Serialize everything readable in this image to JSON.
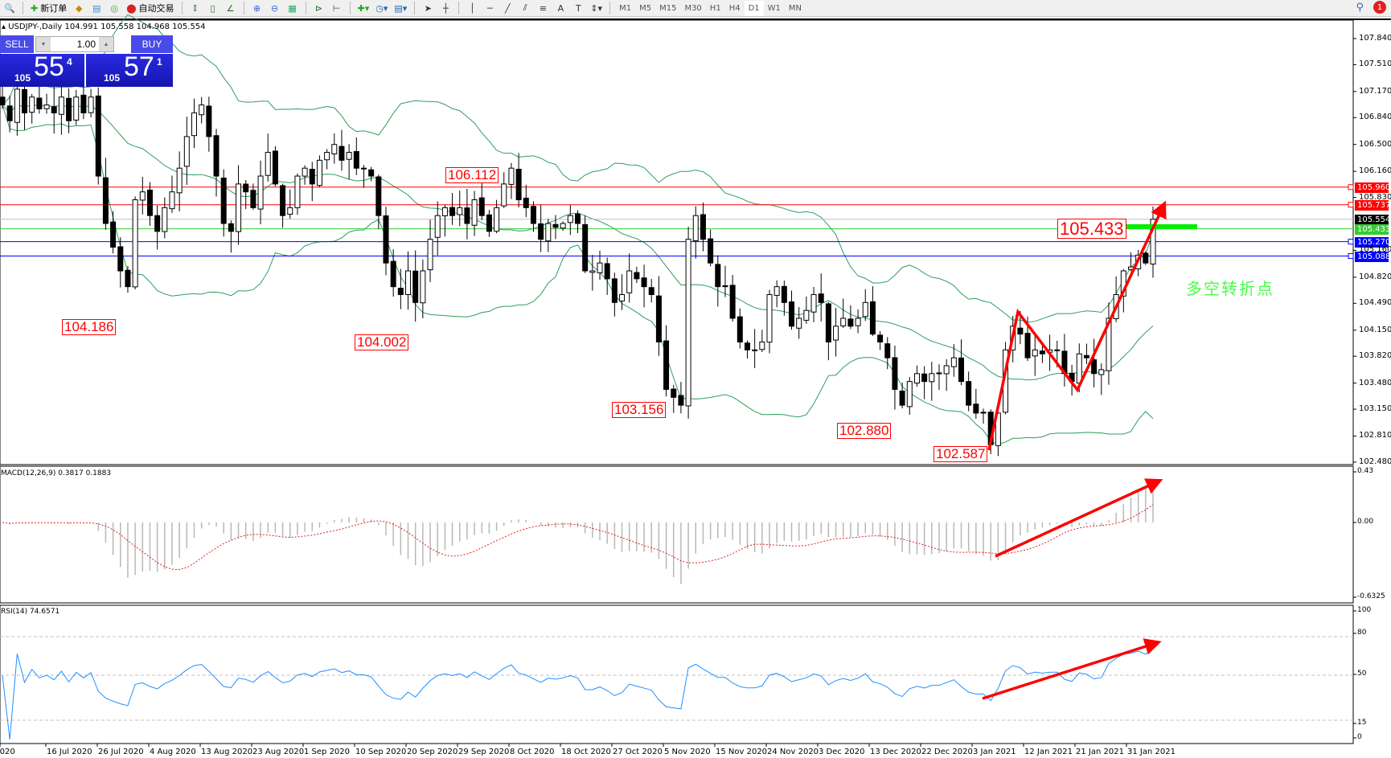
{
  "toolbar": {
    "new_order": "新订单",
    "auto_trading": "自动交易",
    "timeframes": [
      "M1",
      "M5",
      "M15",
      "M30",
      "H1",
      "H4",
      "D1",
      "W1",
      "MN"
    ],
    "active_timeframe": "D1",
    "notification_count": "1"
  },
  "chart": {
    "title": "USDJPY-,Daily",
    "open": "104.991",
    "high": "105.558",
    "low": "104.968",
    "close": "105.554",
    "trade": {
      "sell_label": "SELL",
      "buy_label": "BUY",
      "lot": "1.00",
      "sell_big": "105",
      "sell_mid": "55",
      "sell_sup": "4",
      "buy_big": "105",
      "buy_mid": "57",
      "buy_sup": "1"
    }
  },
  "chart_data": {
    "type": "candlestick",
    "symbol": "USDJPY",
    "timeframe": "Daily",
    "price_ticks": [
      "107.840",
      "107.510",
      "107.170",
      "106.840",
      "106.500",
      "106.160",
      "105.830",
      "105.160",
      "104.820",
      "104.490",
      "104.150",
      "103.820",
      "103.480",
      "103.150",
      "102.810",
      "102.480"
    ],
    "price_range": [
      102.48,
      107.84
    ],
    "date_labels": [
      "Jul 2020",
      "16 Jul 2020",
      "26 Jul 2020",
      "4 Aug 2020",
      "13 Aug 2020",
      "23 Aug 2020",
      "1 Sep 2020",
      "10 Sep 2020",
      "20 Sep 2020",
      "29 Sep 2020",
      "8 Oct 2020",
      "18 Oct 2020",
      "27 Oct 2020",
      "5 Nov 2020",
      "15 Nov 2020",
      "24 Nov 2020",
      "3 Dec 2020",
      "13 Dec 2020",
      "22 Dec 2020",
      "3 Jan 2021",
      "12 Jan 2021",
      "21 Jan 2021",
      "31 Jan 2021"
    ],
    "closes": [
      107.0,
      106.8,
      107.2,
      106.9,
      107.1,
      106.95,
      107.0,
      106.9,
      107.1,
      106.8,
      107.1,
      106.9,
      107.1,
      106.1,
      105.5,
      105.2,
      104.9,
      104.7,
      105.8,
      105.9,
      105.6,
      105.4,
      105.7,
      105.9,
      106.2,
      106.6,
      106.9,
      107.0,
      106.6,
      106.1,
      105.5,
      105.4,
      106.0,
      105.9,
      105.7,
      106.1,
      106.4,
      106.0,
      105.6,
      105.7,
      106.1,
      106.2,
      106.0,
      106.3,
      106.4,
      106.5,
      106.3,
      106.4,
      106.2,
      106.2,
      106.1,
      105.6,
      105.0,
      104.7,
      104.6,
      104.9,
      104.5,
      104.9,
      105.3,
      105.6,
      105.7,
      105.6,
      105.7,
      105.5,
      105.8,
      105.6,
      105.4,
      105.7,
      106.0,
      106.2,
      105.8,
      105.7,
      105.5,
      105.3,
      105.5,
      105.45,
      105.5,
      105.6,
      105.5,
      104.9,
      104.9,
      105.0,
      104.8,
      104.5,
      104.6,
      104.9,
      104.8,
      104.7,
      104.6,
      104.0,
      103.4,
      103.3,
      103.2,
      105.3,
      105.6,
      105.3,
      105.0,
      104.7,
      104.7,
      104.3,
      104.0,
      103.9,
      103.9,
      104.0,
      104.6,
      104.7,
      104.5,
      104.2,
      104.3,
      104.4,
      104.6,
      104.5,
      104.0,
      104.2,
      104.3,
      104.2,
      104.3,
      104.5,
      104.1,
      104.0,
      103.8,
      103.4,
      103.2,
      103.5,
      103.6,
      103.5,
      103.6,
      103.6,
      103.7,
      103.8,
      103.5,
      103.2,
      103.1,
      103.1,
      102.7,
      103.1,
      103.9,
      104.2,
      104.1,
      103.8,
      103.9,
      103.85,
      103.9,
      103.9,
      103.6,
      103.5,
      103.85,
      103.8,
      103.6,
      103.65,
      104.3,
      104.6,
      104.9,
      104.95,
      105.1,
      105.0,
      105.554
    ],
    "indicators": {
      "bollinger": "green bands",
      "macd_label": "MACD(12,26,9) 0.3817 0.1883",
      "macd_ticks": [
        "0.43",
        "0.00",
        "-0.6325"
      ],
      "rsi_label": "RSI(14) 74.6571",
      "rsi_ticks": [
        "100",
        "80",
        "50",
        "15",
        "0"
      ]
    },
    "hlines": [
      {
        "price": "105.960",
        "color": "#ff0000"
      },
      {
        "price": "105.737",
        "color": "#ff0000"
      },
      {
        "price": "105.554",
        "color": "#c0c0c0",
        "tag": "#000000"
      },
      {
        "price": "105.433",
        "color": "#32cd32",
        "tag": "#32cd32"
      },
      {
        "price": "105.270",
        "color": "#0000ff"
      },
      {
        "price": "105.088",
        "color": "#0000ff"
      }
    ],
    "annotations": {
      "l1": "104.186",
      "l2": "104.002",
      "l3": "106.112",
      "l4": "103.156",
      "l5": "102.880",
      "l6": "102.587",
      "l7": "105.433",
      "note": "多空转折点"
    }
  }
}
